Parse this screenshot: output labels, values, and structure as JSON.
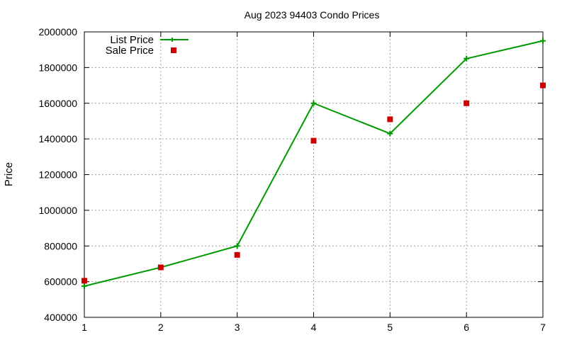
{
  "chart_data": {
    "type": "line",
    "title": "Aug 2023 94403 Condo Prices",
    "xlabel": "",
    "ylabel": "Price",
    "x": [
      1,
      2,
      3,
      4,
      5,
      6,
      7
    ],
    "xlim": [
      1,
      7
    ],
    "ylim": [
      400000,
      2000000
    ],
    "xticks": [
      "1",
      "2",
      "3",
      "4",
      "5",
      "6",
      "7"
    ],
    "yticks": [
      "400000",
      "600000",
      "800000",
      "1000000",
      "1200000",
      "1400000",
      "1600000",
      "1800000",
      "2000000"
    ],
    "grid": true,
    "legend_position": "top-left",
    "series": [
      {
        "name": "List Price",
        "style": "line-with-plus-markers",
        "color": "#009900",
        "values": [
          575000,
          680000,
          800000,
          1600000,
          1430000,
          1850000,
          1950000
        ]
      },
      {
        "name": "Sale Price",
        "style": "square-markers",
        "color": "#cc0000",
        "values": [
          605000,
          680000,
          750000,
          1390000,
          1510000,
          1600000,
          1700000
        ]
      }
    ]
  }
}
